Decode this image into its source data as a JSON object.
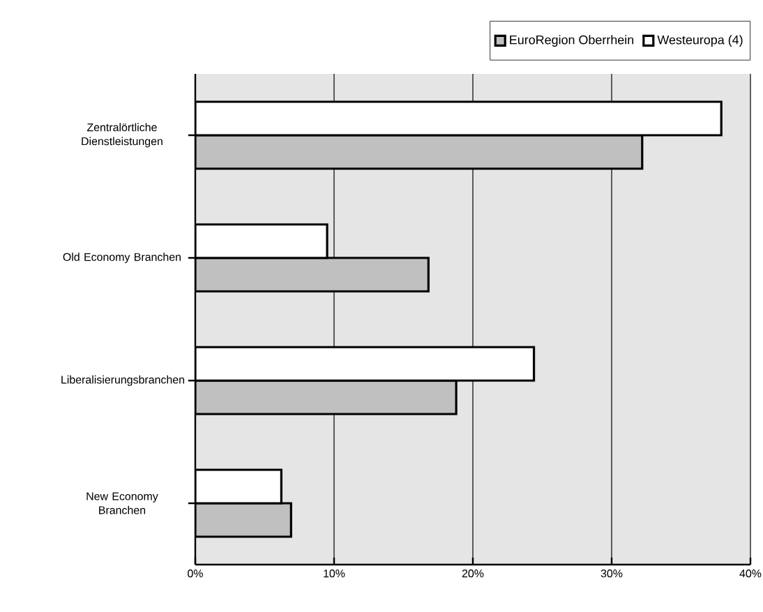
{
  "chart_data": {
    "type": "bar",
    "orientation": "horizontal",
    "categories": [
      "Zentralörtliche Dienstleistungen",
      "Old Economy Branchen",
      "Liberalisierungsbranchen",
      "New Economy Branchen"
    ],
    "series": [
      {
        "name": "EuroRegion Oberrhein",
        "color": "#c0c0c0",
        "values": [
          32.2,
          16.8,
          18.8,
          6.9
        ]
      },
      {
        "name": "Westeuropa (4)",
        "color": "#ffffff",
        "values": [
          37.9,
          9.5,
          24.4,
          6.2
        ]
      }
    ],
    "xlim": [
      0,
      40
    ],
    "xticks": [
      {
        "value": 0,
        "label": "0%"
      },
      {
        "value": 10,
        "label": "10%"
      },
      {
        "value": 20,
        "label": "20%"
      },
      {
        "value": 30,
        "label": "30%"
      },
      {
        "value": 40,
        "label": "40%"
      }
    ],
    "grid": "x",
    "legend": "top right"
  }
}
